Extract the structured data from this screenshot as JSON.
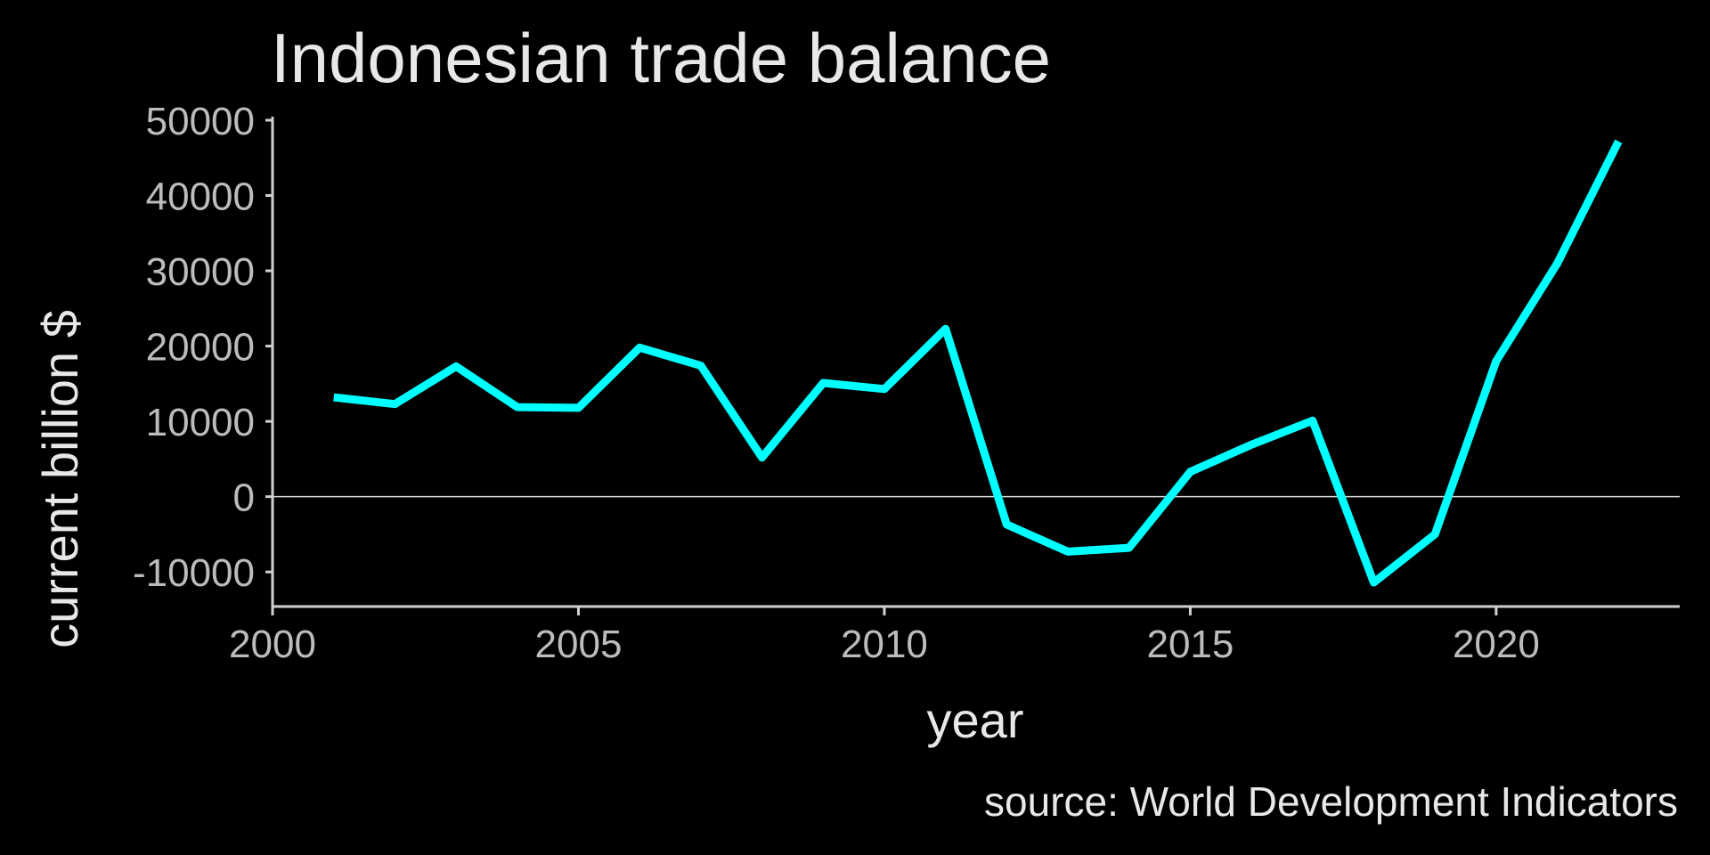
{
  "chart_data": {
    "type": "line",
    "title": "Indonesian trade balance",
    "xlabel": "year",
    "ylabel": "current billion $",
    "caption": "source: World Development Indicators",
    "xlim": [
      2000,
      2023
    ],
    "ylim": [
      -14000,
      50000
    ],
    "x_ticks": [
      2000,
      2005,
      2010,
      2015,
      2020
    ],
    "y_ticks": [
      -10000,
      0,
      10000,
      20000,
      30000,
      40000,
      50000
    ],
    "reference_line_y": 0,
    "grid": false,
    "line_color": "#00ffff",
    "series": [
      {
        "x": [
          2001,
          2002,
          2003,
          2004,
          2005,
          2006,
          2007,
          2008,
          2009,
          2010,
          2011,
          2012,
          2013,
          2014,
          2015,
          2016,
          2017,
          2018,
          2019,
          2020,
          2021,
          2022
        ],
        "values": [
          13200,
          12300,
          17300,
          11900,
          11800,
          19800,
          17400,
          5200,
          15100,
          14300,
          22300,
          -3700,
          -7300,
          -6800,
          3300,
          6900,
          10100,
          -11400,
          -5000,
          18000,
          31000,
          47200
        ]
      }
    ]
  }
}
